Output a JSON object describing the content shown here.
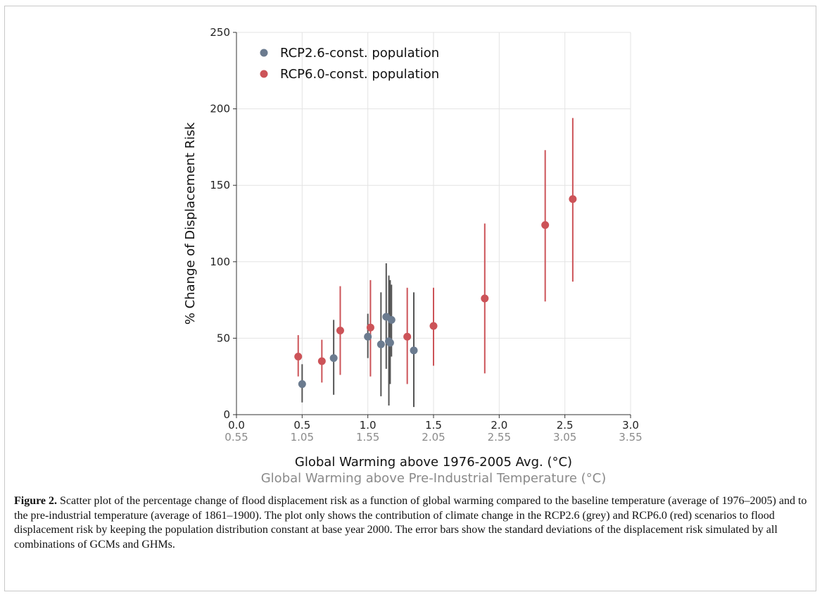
{
  "chart_data": {
    "type": "scatter",
    "xlabel": "Global Warming above 1976-2005 Avg. (°C)",
    "xlabel_secondary": "Global Warming above Pre-Industrial Temperature (°C)",
    "ylabel": "% Change of Displacement Risk",
    "xlim": [
      0.0,
      3.0
    ],
    "ylim": [
      0,
      250
    ],
    "x_ticks": [
      "0.0",
      "0.5",
      "1.0",
      "1.5",
      "2.0",
      "2.5",
      "3.0"
    ],
    "x_ticks_secondary": [
      "0.55",
      "1.05",
      "1.55",
      "2.05",
      "2.55",
      "3.05",
      "3.55"
    ],
    "y_ticks": [
      "0",
      "50",
      "100",
      "150",
      "200",
      "250"
    ],
    "grid": true,
    "legend_position": "top-left",
    "series": [
      {
        "name": "RCP2.6-const. population",
        "color": "#6b7b8f",
        "error_color": "#555555",
        "points": [
          {
            "x": 0.5,
            "y": 20,
            "lo": 8,
            "hi": 33
          },
          {
            "x": 0.74,
            "y": 37,
            "lo": 13,
            "hi": 62
          },
          {
            "x": 1.0,
            "y": 51,
            "lo": 37,
            "hi": 66
          },
          {
            "x": 1.1,
            "y": 46,
            "lo": 12,
            "hi": 80
          },
          {
            "x": 1.14,
            "y": 64,
            "lo": 30,
            "hi": 99
          },
          {
            "x": 1.16,
            "y": 48,
            "lo": 6,
            "hi": 91
          },
          {
            "x": 1.17,
            "y": 47,
            "lo": 20,
            "hi": 88
          },
          {
            "x": 1.18,
            "y": 62,
            "lo": 38,
            "hi": 85
          },
          {
            "x": 1.35,
            "y": 42,
            "lo": 5,
            "hi": 80
          }
        ]
      },
      {
        "name": "RCP6.0-const. population",
        "color": "#cc5358",
        "error_color": "#cc5358",
        "points": [
          {
            "x": 0.47,
            "y": 38,
            "lo": 25,
            "hi": 52
          },
          {
            "x": 0.65,
            "y": 35,
            "lo": 21,
            "hi": 49
          },
          {
            "x": 0.79,
            "y": 55,
            "lo": 26,
            "hi": 84
          },
          {
            "x": 1.02,
            "y": 57,
            "lo": 25,
            "hi": 88
          },
          {
            "x": 1.3,
            "y": 51,
            "lo": 20,
            "hi": 83
          },
          {
            "x": 1.5,
            "y": 58,
            "lo": 32,
            "hi": 83
          },
          {
            "x": 1.89,
            "y": 76,
            "lo": 27,
            "hi": 125
          },
          {
            "x": 2.35,
            "y": 124,
            "lo": 74,
            "hi": 173
          },
          {
            "x": 2.56,
            "y": 141,
            "lo": 87,
            "hi": 194
          }
        ]
      }
    ]
  },
  "caption": {
    "label": "Figure 2.",
    "text": "Scatter plot of the percentage change of flood displacement risk as a function of global warming compared to the baseline temperature (average of 1976–2005) and to the pre-industrial temperature (average of 1861–1900). The plot only shows the contribution of climate change in the RCP2.6 (grey) and RCP6.0 (red) scenarios to flood displacement risk by keeping the population distribution constant at base year 2000. The error bars show the standard deviations of the displacement risk simulated by all combinations of GCMs and GHMs."
  }
}
